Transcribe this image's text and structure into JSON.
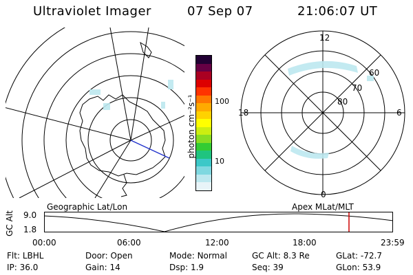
{
  "header": {
    "instrument": "Ultraviolet Imager",
    "date": "07 Sep 07",
    "time": "21:06:07 UT"
  },
  "colorbar": {
    "unit_label": "photon cm⁻²s⁻¹",
    "tick_100": "100",
    "tick_10": "10",
    "colors": [
      "#e8f4f8",
      "#bde8ef",
      "#7fd8e0",
      "#3cc8c8",
      "#1fc47f",
      "#33cc33",
      "#88dd22",
      "#ccee11",
      "#ffff00",
      "#ffd200",
      "#ffaa00",
      "#ff7700",
      "#ff3300",
      "#dd0000",
      "#aa0022",
      "#660044",
      "#220033"
    ]
  },
  "left_map": {
    "label": "Geographic Lat/Lon"
  },
  "right_map": {
    "label": "Apex MLat/MLT",
    "mlt_labels": {
      "top": "12",
      "left": "18",
      "right": "6",
      "bottom": "0"
    },
    "lat_labels": [
      "60",
      "70",
      "80"
    ]
  },
  "altitude_plot": {
    "axis_label": "GC Alt",
    "y_max": "9.0",
    "y_min": "1.8",
    "x_ticks": [
      "00:00",
      "06:00",
      "12:00",
      "18:00",
      "23:59"
    ],
    "marker_color": "#cc0000"
  },
  "info": {
    "row1": [
      {
        "key": "Flt:",
        "val": "LBHL"
      },
      {
        "key": "Door:",
        "val": "Open"
      },
      {
        "key": "Mode:",
        "val": "Normal"
      },
      {
        "key": "GC Alt:",
        "val": "8.3 Re"
      },
      {
        "key": "GLat:",
        "val": "-72.7"
      }
    ],
    "row2": [
      {
        "key": "IP:",
        "val": "36.0"
      },
      {
        "key": "Gain:",
        "val": "14"
      },
      {
        "key": "Dsp:",
        "val": "1.9"
      },
      {
        "key": "Seq:",
        "val": "39"
      },
      {
        "key": "GLon:",
        "val": "53.9"
      }
    ]
  }
}
